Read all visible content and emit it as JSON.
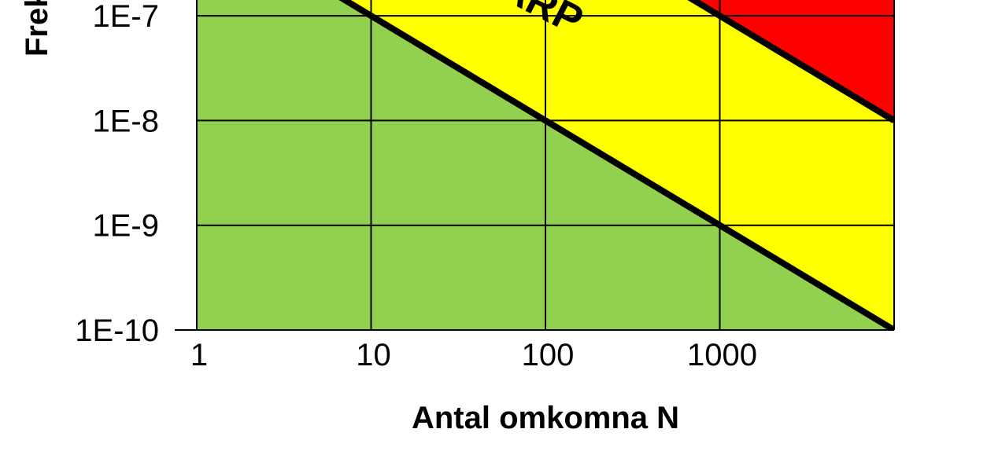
{
  "chart_data": {
    "type": "area",
    "xlabel": "Antal omkomna N",
    "ylabel": "Frek",
    "x_scale": "log",
    "y_scale": "log",
    "xlim": [
      1,
      10000
    ],
    "ylim": [
      1e-10,
      3e-07
    ],
    "x_ticks": [
      {
        "value": 1,
        "label": "1"
      },
      {
        "value": 10,
        "label": "10"
      },
      {
        "value": 100,
        "label": "100"
      },
      {
        "value": 1000,
        "label": "1000"
      }
    ],
    "y_ticks": [
      {
        "value": 1e-07,
        "label": "1E-7"
      },
      {
        "value": 1e-08,
        "label": "1E-8"
      },
      {
        "value": 1e-09,
        "label": "1E-9"
      },
      {
        "value": 1e-10,
        "label": "1E-10"
      }
    ],
    "grid": true,
    "regions": [
      {
        "name": "green",
        "color": "#92d050"
      },
      {
        "name": "yellow",
        "color": "#ffff00"
      },
      {
        "name": "red",
        "color": "#ff0000"
      }
    ],
    "series": [
      {
        "x": [
          1,
          10000
        ],
        "y": [
          1e-06,
          1e-10
        ],
        "color": "#000000"
      },
      {
        "x": [
          1,
          10000
        ],
        "y": [
          0.0001,
          1e-08
        ],
        "color": "#000000"
      }
    ],
    "annotations": [
      {
        "text": "ARP",
        "x": 40,
        "y": 1.3e-07
      }
    ]
  }
}
